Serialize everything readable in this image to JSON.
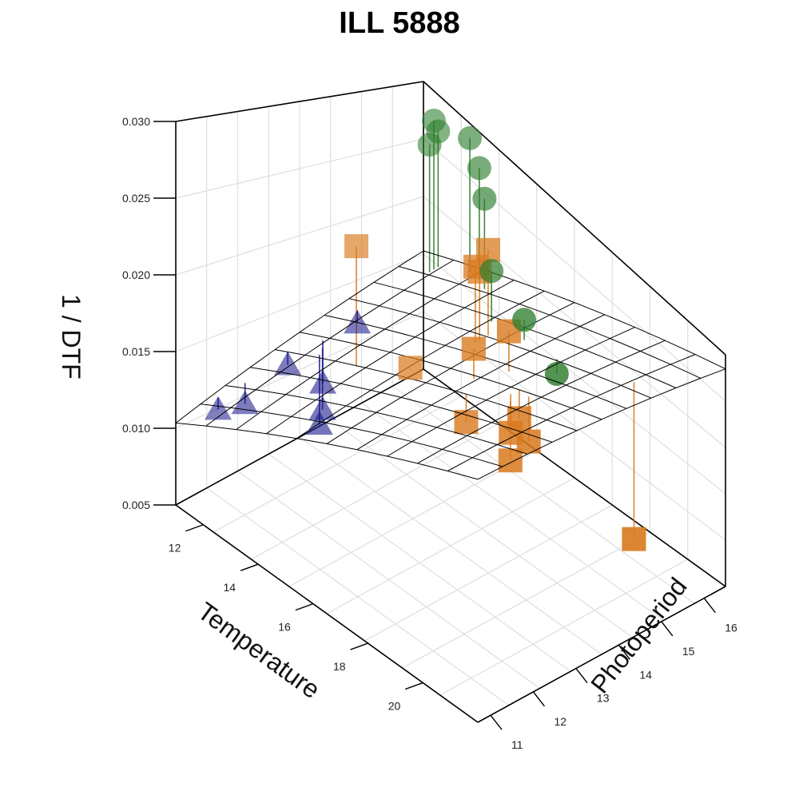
{
  "chart_data": {
    "type": "scatter",
    "title": "ILL 5888",
    "xlabel": "Temperature",
    "ylabel": "Photoperiod",
    "zlabel": "1 / DTF",
    "x_ticks": [
      12,
      14,
      16,
      18,
      20
    ],
    "y_ticks": [
      11,
      12,
      13,
      14,
      15,
      16
    ],
    "z_ticks": [
      "0.005",
      "0.010",
      "0.015",
      "0.020",
      "0.025",
      "0.030"
    ],
    "xlim": [
      11,
      22
    ],
    "ylim": [
      10.7,
      16.5
    ],
    "zlim": [
      0.005,
      0.03
    ],
    "grid": true,
    "surface": {
      "type": "regression-plane",
      "z_at_T11_P11": 0.0106,
      "slope_T": 0.0012,
      "slope_P": 0.00085
    },
    "series": [
      {
        "marker": "triangle",
        "color": "#1a1a8c",
        "points": [
          {
            "x": 11.3,
            "y": 11.5,
            "z": 0.0106
          },
          {
            "x": 11.5,
            "y": 12.0,
            "z": 0.0106
          },
          {
            "x": 11.5,
            "y": 13.0,
            "z": 0.012
          },
          {
            "x": 11.7,
            "y": 14.5,
            "z": 0.0134
          },
          {
            "x": 12.0,
            "y": 13.5,
            "z": 0.0107
          },
          {
            "x": 12.3,
            "y": 13.3,
            "z": 0.0095
          },
          {
            "x": 12.5,
            "y": 13.1,
            "z": 0.009
          }
        ]
      },
      {
        "marker": "square",
        "color": "#d97a1f",
        "points": [
          {
            "x": 14.0,
            "y": 13.0,
            "z": 0.025
          },
          {
            "x": 16.0,
            "y": 14.5,
            "z": 0.026
          },
          {
            "x": 16.0,
            "y": 14.6,
            "z": 0.0255
          },
          {
            "x": 16.0,
            "y": 14.8,
            "z": 0.0272
          },
          {
            "x": 15.5,
            "y": 13.3,
            "z": 0.018
          },
          {
            "x": 18.0,
            "y": 14.0,
            "z": 0.025
          },
          {
            "x": 17.5,
            "y": 13.5,
            "z": 0.023
          },
          {
            "x": 18.0,
            "y": 13.0,
            "z": 0.0185
          },
          {
            "x": 19.0,
            "y": 13.6,
            "z": 0.02
          },
          {
            "x": 19.0,
            "y": 13.4,
            "z": 0.019
          },
          {
            "x": 19.5,
            "y": 13.5,
            "z": 0.0191
          },
          {
            "x": 19.3,
            "y": 13.2,
            "z": 0.0175
          },
          {
            "x": 21.0,
            "y": 15.0,
            "z": 0.011
          }
        ]
      },
      {
        "marker": "circle",
        "color": "#2e7d2e",
        "points": [
          {
            "x": 12.0,
            "y": 16.2,
            "z": 0.028
          },
          {
            "x": 12.0,
            "y": 16.1,
            "z": 0.029
          },
          {
            "x": 12.0,
            "y": 16.0,
            "z": 0.027
          },
          {
            "x": 13.0,
            "y": 16.3,
            "z": 0.0295
          },
          {
            "x": 13.5,
            "y": 16.2,
            "z": 0.028
          },
          {
            "x": 14.0,
            "y": 16.0,
            "z": 0.0265
          },
          {
            "x": 15.5,
            "y": 15.2,
            "z": 0.024
          },
          {
            "x": 17.0,
            "y": 15.0,
            "z": 0.023
          },
          {
            "x": 18.5,
            "y": 14.8,
            "z": 0.0215
          }
        ]
      }
    ]
  }
}
